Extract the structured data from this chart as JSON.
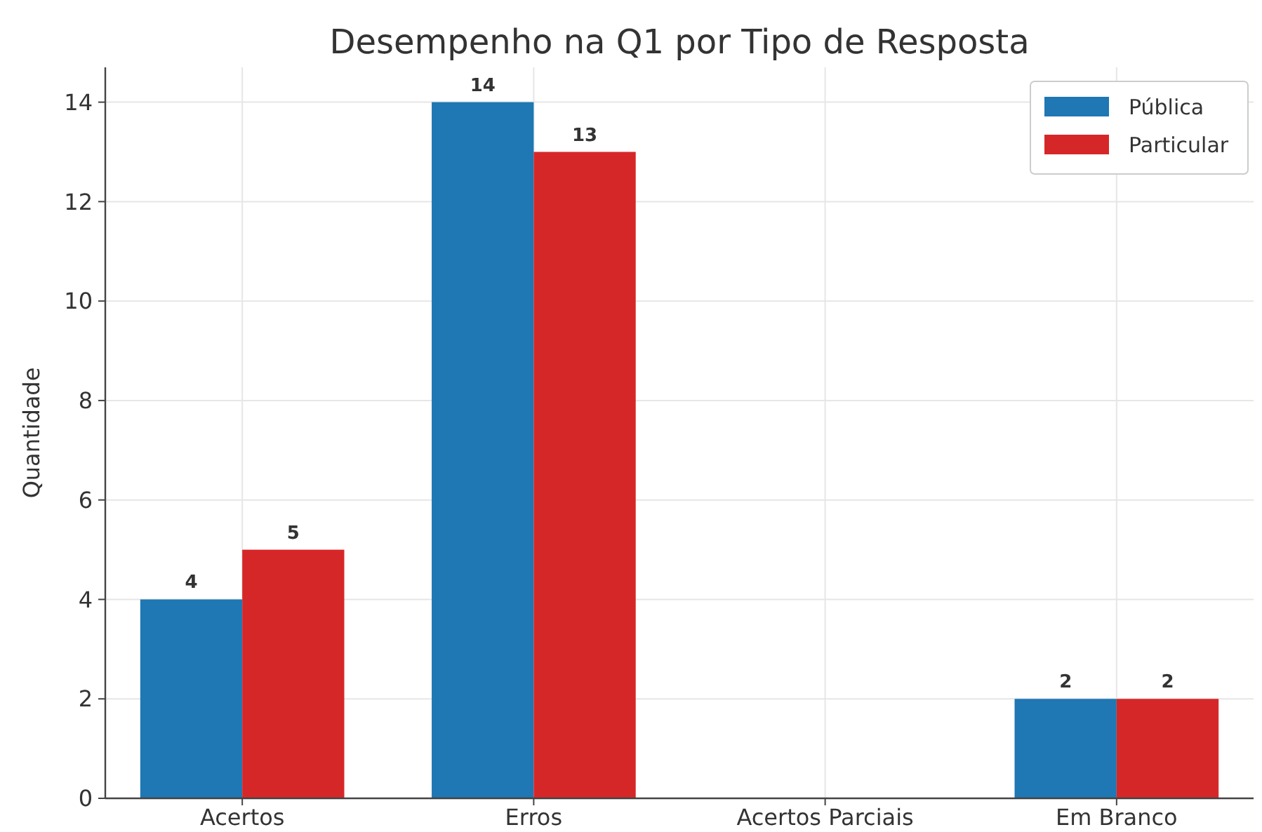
{
  "chart_data": {
    "type": "bar",
    "title": "Desempenho na Q1 por Tipo de Resposta",
    "ylabel": "Quantidade",
    "categories": [
      "Acertos",
      "Erros",
      "Acertos Parciais",
      "Em Branco"
    ],
    "series": [
      {
        "name": "Pública",
        "color": "#1f77b4",
        "values": [
          4,
          14,
          0,
          2
        ],
        "value_labels": [
          "4",
          "14",
          null,
          "2"
        ]
      },
      {
        "name": "Particular",
        "color": "#d62728",
        "values": [
          5,
          13,
          0,
          2
        ],
        "value_labels": [
          "5",
          "13",
          null,
          "2"
        ]
      }
    ],
    "ylim": [
      0,
      14.7
    ],
    "yticks": [
      0,
      2,
      4,
      6,
      8,
      10,
      12,
      14
    ],
    "grid": true,
    "legend": "top right"
  }
}
